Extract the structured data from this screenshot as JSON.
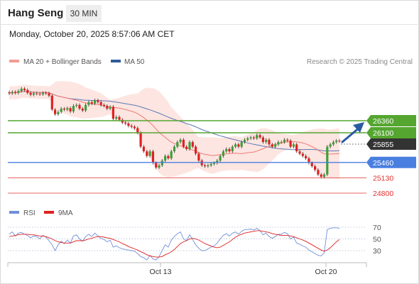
{
  "header": {
    "title": "Hang Seng",
    "timeframe": "30 MIN",
    "timestamp": "Monday, October 20, 2025 8:57:06 AM CET"
  },
  "legend": {
    "items": [
      {
        "label": "MA 20 + Bollinger Bands",
        "color": "#f29b95"
      },
      {
        "label": "MA 50",
        "color": "#2f5b9a"
      }
    ],
    "source": "Research © 2025 Trading Central"
  },
  "rsi_legend": {
    "items": [
      {
        "label": "RSI",
        "color": "#6f8fd8"
      },
      {
        "label": "9MA",
        "color": "#e02020"
      }
    ]
  },
  "colors": {
    "bull": "#3f9e3a",
    "bear": "#e02020",
    "resistance": "#55a630",
    "pivot": "#333333",
    "support1": "#4a7fe0",
    "support": "#e03030",
    "band_fill": "#fde2de",
    "ma20": "#f07b73",
    "ma50": "#5b78b8",
    "arrow": "#2b5aa3"
  },
  "chart_data": [
    {
      "type": "candlestick",
      "title": "Hang Seng",
      "timeframe": "30 MIN",
      "x_labels": [
        "Oct 13",
        "Oct 20"
      ],
      "ylim": [
        24650,
        26580
      ],
      "levels": [
        {
          "value": 26360,
          "label": "26360",
          "kind": "resistance"
        },
        {
          "value": 26100,
          "label": "26100",
          "kind": "resistance"
        },
        {
          "value": 25855,
          "label": "25855",
          "kind": "pivot"
        },
        {
          "value": 25460,
          "label": "25460",
          "kind": "support1"
        },
        {
          "value": 25130,
          "label": "25130",
          "kind": "support"
        },
        {
          "value": 24800,
          "label": "24800",
          "kind": "support"
        }
      ],
      "close_series": [
        26950,
        26980,
        26960,
        27000,
        27050,
        27020,
        26960,
        26920,
        26950,
        26940,
        26930,
        26960,
        26950,
        26900,
        26600,
        26500,
        26550,
        26620,
        26600,
        26630,
        26560,
        26680,
        26700,
        26620,
        26580,
        26700,
        26760,
        26730,
        26800,
        26760,
        26700,
        26680,
        26620,
        26660,
        26400,
        26440,
        26380,
        26320,
        26300,
        26250,
        26230,
        26200,
        26100,
        25800,
        25700,
        25600,
        25700,
        25450,
        25350,
        25400,
        25500,
        25600,
        25550,
        25700,
        25800,
        25900,
        25950,
        25800,
        25750,
        25900,
        25800,
        25650,
        25500,
        25400,
        25380,
        25400,
        25430,
        25450,
        25500,
        25600,
        25700,
        25750,
        25700,
        25800,
        25850,
        25800,
        25900,
        25950,
        25980,
        26000,
        25980,
        26050,
        26000,
        25900,
        25950,
        25850,
        25800,
        25850,
        25900,
        25900,
        25950,
        25930,
        25800,
        25850,
        25700,
        25650,
        25600,
        25550,
        25450,
        25380,
        25300,
        25200,
        25150,
        25200,
        25800,
        25850,
        25900,
        25930,
        25920
      ],
      "ma20_upper_note": "Bollinger band shaded around MA 20"
    },
    {
      "type": "line",
      "title": "RSI",
      "series": [
        {
          "name": "RSI",
          "values": [
            58,
            62,
            55,
            60,
            61,
            58,
            56,
            52,
            55,
            54,
            50,
            56,
            53,
            47,
            40,
            30,
            40,
            46,
            42,
            48,
            43,
            55,
            57,
            50,
            46,
            54,
            58,
            54,
            60,
            55,
            51,
            49,
            45,
            48,
            36,
            38,
            35,
            33,
            32,
            31,
            30,
            29,
            25,
            20,
            18,
            14,
            22,
            16,
            14,
            20,
            30,
            40,
            36,
            48,
            54,
            59,
            62,
            50,
            47,
            57,
            49,
            40,
            34,
            30,
            30,
            33,
            36,
            38,
            43,
            50,
            56,
            59,
            55,
            60,
            62,
            58,
            63,
            66,
            66,
            67,
            65,
            68,
            64,
            57,
            60,
            54,
            51,
            54,
            58,
            58,
            61,
            59,
            50,
            53,
            43,
            41,
            38,
            36,
            31,
            28,
            25,
            22,
            21,
            26,
            66,
            68,
            69,
            69,
            68
          ]
        },
        {
          "name": "9MA",
          "values": [
            54,
            55,
            56,
            57,
            58,
            58,
            58,
            57,
            57,
            56,
            55,
            55,
            54,
            52,
            50,
            47,
            45,
            44,
            43,
            43,
            43,
            45,
            47,
            47,
            47,
            48,
            50,
            51,
            53,
            54,
            54,
            53,
            52,
            51,
            49,
            47,
            45,
            42,
            40,
            37,
            35,
            33,
            31,
            28,
            26,
            23,
            21,
            20,
            19,
            19,
            20,
            23,
            25,
            28,
            32,
            37,
            42,
            45,
            47,
            50,
            51,
            50,
            48,
            45,
            42,
            40,
            38,
            36,
            35,
            36,
            39,
            42,
            45,
            49,
            53,
            56,
            58,
            60,
            61,
            62,
            63,
            64,
            64,
            63,
            62,
            61,
            59,
            58,
            57,
            56,
            56,
            56,
            55,
            54,
            52,
            50,
            48,
            46,
            43,
            40,
            37,
            34,
            31,
            29,
            31,
            35,
            40,
            45,
            49
          ]
        }
      ],
      "levels": [
        {
          "value": 70,
          "label": "70"
        },
        {
          "value": 50,
          "label": "50"
        },
        {
          "value": 30,
          "label": "30"
        }
      ],
      "ylim": [
        5,
        85
      ]
    }
  ]
}
